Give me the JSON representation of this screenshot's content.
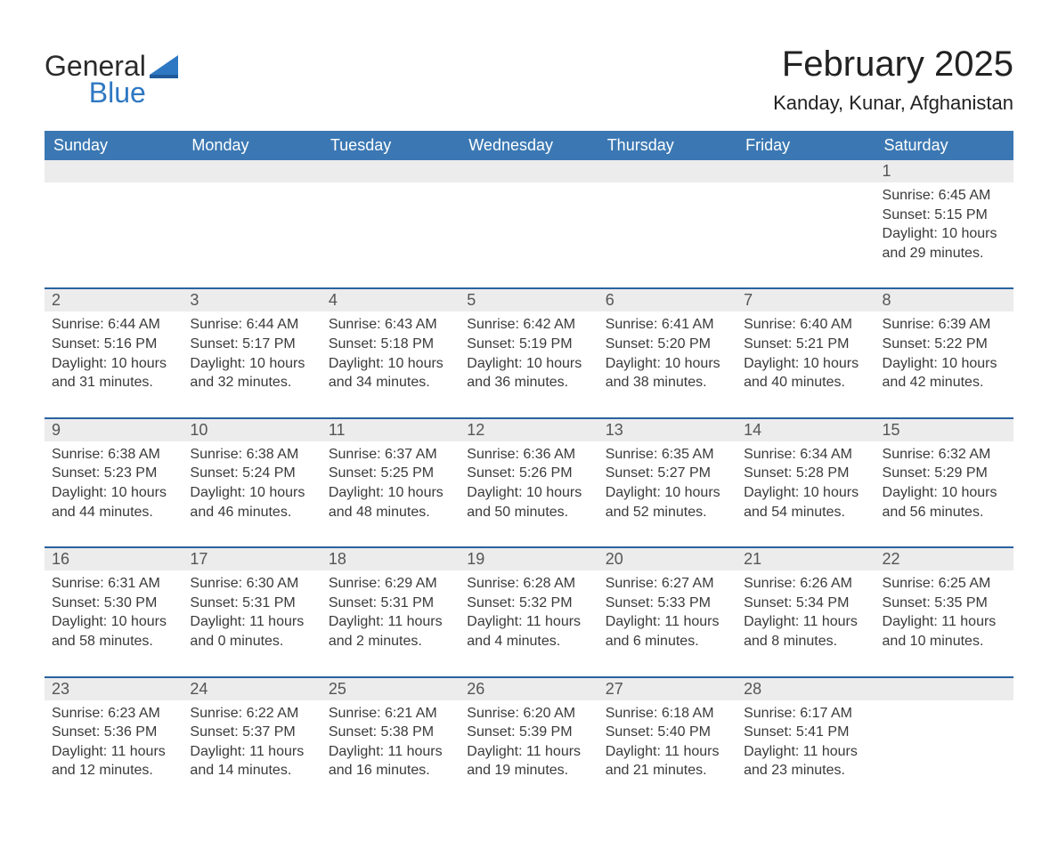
{
  "logo": {
    "word1": "General",
    "word2": "Blue"
  },
  "title": "February 2025",
  "location": "Kanday, Kunar, Afghanistan",
  "colors": {
    "header_bg": "#3b78b3",
    "rule": "#2a62a0",
    "row_grey": "#ececec",
    "logo_blue": "#2e78c3",
    "page_bg": "#ffffff"
  },
  "columns": [
    "Sunday",
    "Monday",
    "Tuesday",
    "Wednesday",
    "Thursday",
    "Friday",
    "Saturday"
  ],
  "weeks": [
    [
      null,
      null,
      null,
      null,
      null,
      null,
      {
        "n": "1",
        "sr": "Sunrise: 6:45 AM",
        "ss": "Sunset: 5:15 PM",
        "d1": "Daylight: 10 hours",
        "d2": "and 29 minutes."
      }
    ],
    [
      {
        "n": "2",
        "sr": "Sunrise: 6:44 AM",
        "ss": "Sunset: 5:16 PM",
        "d1": "Daylight: 10 hours",
        "d2": "and 31 minutes."
      },
      {
        "n": "3",
        "sr": "Sunrise: 6:44 AM",
        "ss": "Sunset: 5:17 PM",
        "d1": "Daylight: 10 hours",
        "d2": "and 32 minutes."
      },
      {
        "n": "4",
        "sr": "Sunrise: 6:43 AM",
        "ss": "Sunset: 5:18 PM",
        "d1": "Daylight: 10 hours",
        "d2": "and 34 minutes."
      },
      {
        "n": "5",
        "sr": "Sunrise: 6:42 AM",
        "ss": "Sunset: 5:19 PM",
        "d1": "Daylight: 10 hours",
        "d2": "and 36 minutes."
      },
      {
        "n": "6",
        "sr": "Sunrise: 6:41 AM",
        "ss": "Sunset: 5:20 PM",
        "d1": "Daylight: 10 hours",
        "d2": "and 38 minutes."
      },
      {
        "n": "7",
        "sr": "Sunrise: 6:40 AM",
        "ss": "Sunset: 5:21 PM",
        "d1": "Daylight: 10 hours",
        "d2": "and 40 minutes."
      },
      {
        "n": "8",
        "sr": "Sunrise: 6:39 AM",
        "ss": "Sunset: 5:22 PM",
        "d1": "Daylight: 10 hours",
        "d2": "and 42 minutes."
      }
    ],
    [
      {
        "n": "9",
        "sr": "Sunrise: 6:38 AM",
        "ss": "Sunset: 5:23 PM",
        "d1": "Daylight: 10 hours",
        "d2": "and 44 minutes."
      },
      {
        "n": "10",
        "sr": "Sunrise: 6:38 AM",
        "ss": "Sunset: 5:24 PM",
        "d1": "Daylight: 10 hours",
        "d2": "and 46 minutes."
      },
      {
        "n": "11",
        "sr": "Sunrise: 6:37 AM",
        "ss": "Sunset: 5:25 PM",
        "d1": "Daylight: 10 hours",
        "d2": "and 48 minutes."
      },
      {
        "n": "12",
        "sr": "Sunrise: 6:36 AM",
        "ss": "Sunset: 5:26 PM",
        "d1": "Daylight: 10 hours",
        "d2": "and 50 minutes."
      },
      {
        "n": "13",
        "sr": "Sunrise: 6:35 AM",
        "ss": "Sunset: 5:27 PM",
        "d1": "Daylight: 10 hours",
        "d2": "and 52 minutes."
      },
      {
        "n": "14",
        "sr": "Sunrise: 6:34 AM",
        "ss": "Sunset: 5:28 PM",
        "d1": "Daylight: 10 hours",
        "d2": "and 54 minutes."
      },
      {
        "n": "15",
        "sr": "Sunrise: 6:32 AM",
        "ss": "Sunset: 5:29 PM",
        "d1": "Daylight: 10 hours",
        "d2": "and 56 minutes."
      }
    ],
    [
      {
        "n": "16",
        "sr": "Sunrise: 6:31 AM",
        "ss": "Sunset: 5:30 PM",
        "d1": "Daylight: 10 hours",
        "d2": "and 58 minutes."
      },
      {
        "n": "17",
        "sr": "Sunrise: 6:30 AM",
        "ss": "Sunset: 5:31 PM",
        "d1": "Daylight: 11 hours",
        "d2": "and 0 minutes."
      },
      {
        "n": "18",
        "sr": "Sunrise: 6:29 AM",
        "ss": "Sunset: 5:31 PM",
        "d1": "Daylight: 11 hours",
        "d2": "and 2 minutes."
      },
      {
        "n": "19",
        "sr": "Sunrise: 6:28 AM",
        "ss": "Sunset: 5:32 PM",
        "d1": "Daylight: 11 hours",
        "d2": "and 4 minutes."
      },
      {
        "n": "20",
        "sr": "Sunrise: 6:27 AM",
        "ss": "Sunset: 5:33 PM",
        "d1": "Daylight: 11 hours",
        "d2": "and 6 minutes."
      },
      {
        "n": "21",
        "sr": "Sunrise: 6:26 AM",
        "ss": "Sunset: 5:34 PM",
        "d1": "Daylight: 11 hours",
        "d2": "and 8 minutes."
      },
      {
        "n": "22",
        "sr": "Sunrise: 6:25 AM",
        "ss": "Sunset: 5:35 PM",
        "d1": "Daylight: 11 hours",
        "d2": "and 10 minutes."
      }
    ],
    [
      {
        "n": "23",
        "sr": "Sunrise: 6:23 AM",
        "ss": "Sunset: 5:36 PM",
        "d1": "Daylight: 11 hours",
        "d2": "and 12 minutes."
      },
      {
        "n": "24",
        "sr": "Sunrise: 6:22 AM",
        "ss": "Sunset: 5:37 PM",
        "d1": "Daylight: 11 hours",
        "d2": "and 14 minutes."
      },
      {
        "n": "25",
        "sr": "Sunrise: 6:21 AM",
        "ss": "Sunset: 5:38 PM",
        "d1": "Daylight: 11 hours",
        "d2": "and 16 minutes."
      },
      {
        "n": "26",
        "sr": "Sunrise: 6:20 AM",
        "ss": "Sunset: 5:39 PM",
        "d1": "Daylight: 11 hours",
        "d2": "and 19 minutes."
      },
      {
        "n": "27",
        "sr": "Sunrise: 6:18 AM",
        "ss": "Sunset: 5:40 PM",
        "d1": "Daylight: 11 hours",
        "d2": "and 21 minutes."
      },
      {
        "n": "28",
        "sr": "Sunrise: 6:17 AM",
        "ss": "Sunset: 5:41 PM",
        "d1": "Daylight: 11 hours",
        "d2": "and 23 minutes."
      },
      null
    ]
  ]
}
